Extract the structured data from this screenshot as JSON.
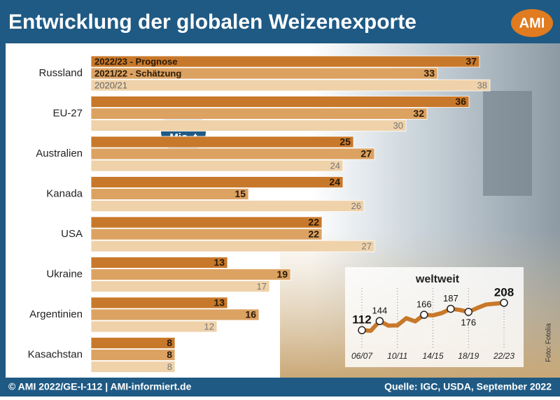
{
  "title": "Entwicklung der globalen Weizenexporte",
  "logo": "AMI",
  "chart_data": [
    {
      "type": "bar",
      "orientation": "horizontal",
      "unit_badge": "in Mio. t",
      "categories": [
        "Russland",
        "EU-27",
        "Australien",
        "Kanada",
        "USA",
        "Ukraine",
        "Argentinien",
        "Kasachstan"
      ],
      "series": [
        {
          "name": "2022/23 - Prognose",
          "color": "#c8782a",
          "values": [
            37,
            36,
            25,
            24,
            22,
            13,
            13,
            8
          ]
        },
        {
          "name": "2021/22 - Schätzung",
          "color": "#dca262",
          "values": [
            33,
            32,
            27,
            15,
            22,
            19,
            16,
            8
          ]
        },
        {
          "name": "2020/21",
          "color": "#efd2aa",
          "values": [
            38,
            30,
            24,
            26,
            27,
            17,
            12,
            8
          ]
        }
      ]
    },
    {
      "type": "line",
      "title": "weltweit",
      "color": "#c8782a",
      "x": [
        "06/07",
        null,
        null,
        null,
        "10/11",
        null,
        null,
        null,
        "14/15",
        null,
        null,
        null,
        "18/19",
        null,
        null,
        null,
        "22/23"
      ],
      "values": [
        112,
        110,
        144,
        128,
        129,
        154,
        143,
        166,
        164,
        172,
        187,
        183,
        176,
        190,
        202,
        205,
        208
      ],
      "value_labels": [
        "112",
        null,
        "144",
        null,
        null,
        null,
        null,
        "166",
        null,
        null,
        "187",
        null,
        "176",
        null,
        null,
        null,
        "208"
      ]
    }
  ],
  "footer": {
    "left": "© AMI 2022/GE-I-112 | AMI-informiert.de",
    "right": "Quelle: IGC, USDA, September 2022",
    "photo": "Foto: Fotolia"
  }
}
